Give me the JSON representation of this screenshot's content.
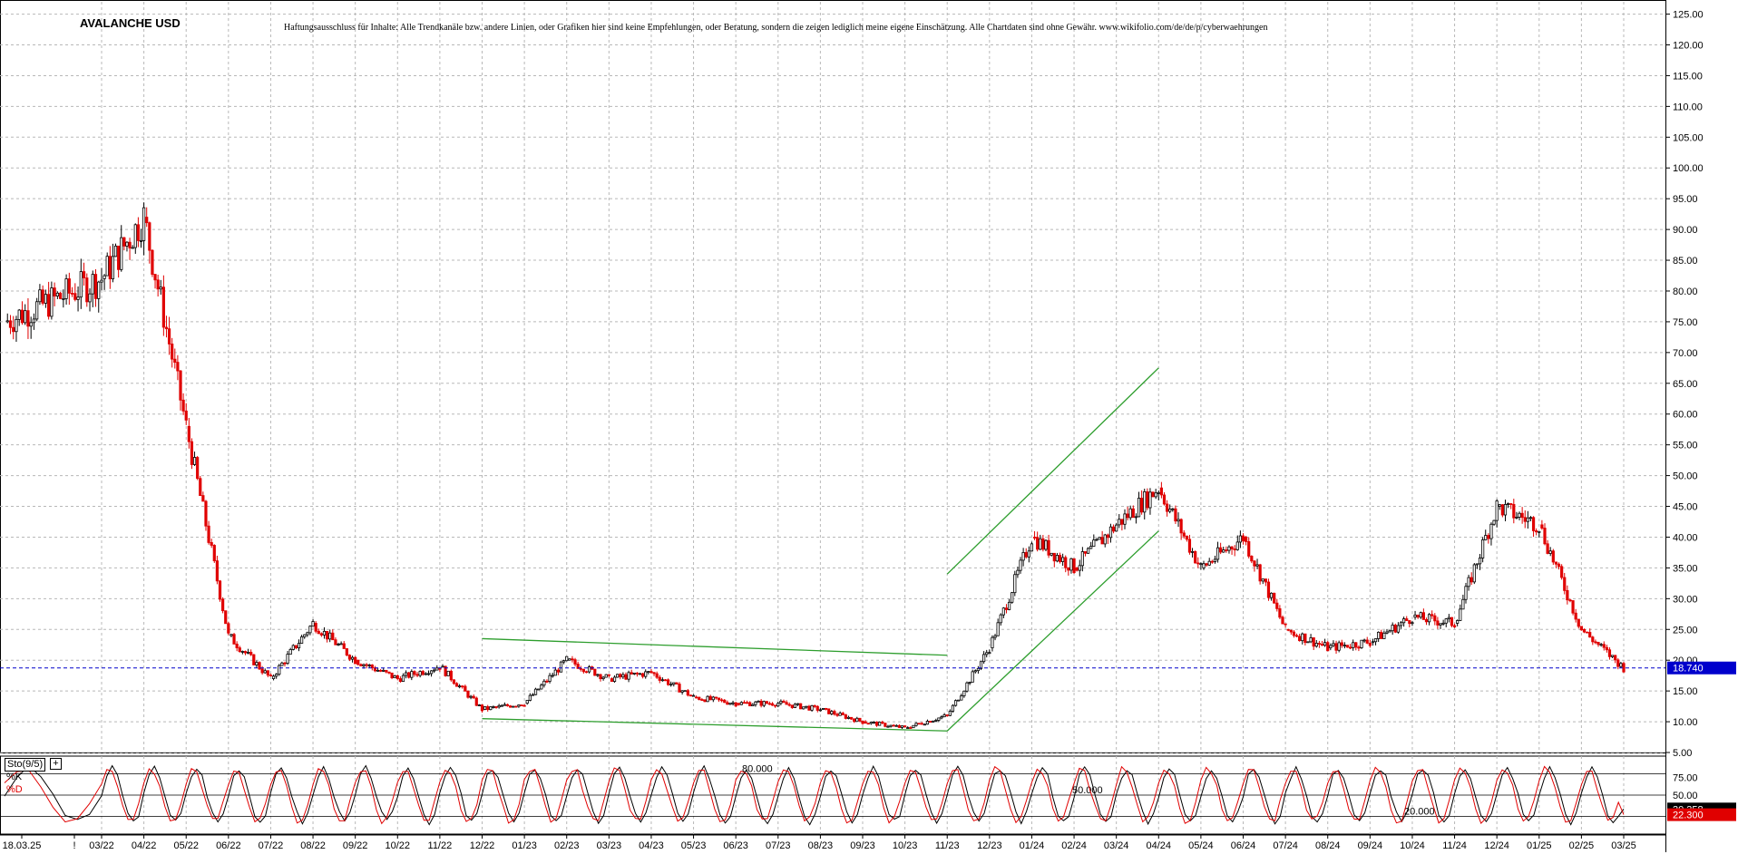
{
  "title": "AVALANCHE USD",
  "disclaimer": "Haftungsausschluss für Inhalte: Alle Trendkanäle bzw. andere Linien, oder Grafiken hier sind keine Empfehlungen, oder Beratung, sondern die zeigen lediglich meine eigene Einschätzung. Alle Chartdaten sind ohne Gewähr.  www.wikifolio.com/de/de/p/cyberwaehrungen",
  "colors": {
    "up": "#000000",
    "down": "#e00000",
    "trendline": "#2e9e2e",
    "price_line": "#0000cc",
    "grid": "#b8b8b8"
  },
  "chart_data": [
    {
      "type": "candlestick",
      "title": "AVALANCHE USD",
      "ylim": [
        5,
        127
      ],
      "y_ticks": [
        "125.00",
        "120.00",
        "115.00",
        "110.00",
        "105.00",
        "100.00",
        "95.00",
        "90.00",
        "85.00",
        "80.00",
        "75.00",
        "70.00",
        "65.00",
        "60.00",
        "55.00",
        "50.00",
        "45.00",
        "40.00",
        "35.00",
        "30.00",
        "25.00",
        "20.00",
        "15.00",
        "10.00",
        "5.00"
      ],
      "x_ticks": [
        "18.03.25",
        "!",
        "03/22",
        "04/22",
        "05/22",
        "06/22",
        "07/22",
        "08/22",
        "09/22",
        "10/22",
        "11/22",
        "12/22",
        "01/23",
        "02/23",
        "03/23",
        "04/23",
        "05/23",
        "06/23",
        "07/23",
        "08/23",
        "09/23",
        "10/23",
        "11/23",
        "12/23",
        "01/24",
        "02/24",
        "03/24",
        "04/24",
        "05/24",
        "06/24",
        "07/24",
        "08/24",
        "09/24",
        "10/24",
        "11/24",
        "12/24",
        "01/25",
        "02/25",
        "03/25"
      ],
      "x": [
        "02/22",
        "03/22",
        "04/22",
        "05/22",
        "06/22",
        "07/22",
        "08/22",
        "09/22",
        "10/22",
        "11/22",
        "12/22",
        "01/23",
        "02/23",
        "03/23",
        "04/23",
        "05/23",
        "06/23",
        "07/23",
        "08/23",
        "09/23",
        "10/23",
        "11/23",
        "12/23",
        "01/24",
        "02/24",
        "03/24",
        "04/24",
        "05/24",
        "06/24",
        "07/24",
        "08/24",
        "09/24",
        "10/24",
        "11/24",
        "12/24",
        "01/25",
        "02/25",
        "03/25"
      ],
      "close": [
        75,
        82,
        92,
        58,
        24,
        17,
        26,
        20,
        17,
        19,
        12,
        13,
        20,
        17,
        18,
        14,
        13,
        13,
        12,
        10,
        9,
        11,
        22,
        40,
        35,
        42,
        48,
        35,
        40,
        25,
        22,
        23,
        27,
        26,
        45,
        42,
        25,
        18.74
      ],
      "last_price": "18.740",
      "trendlines": [
        {
          "name": "channel-2023-upper",
          "from": [
            "12/22",
            23.5
          ],
          "to": [
            "11/23",
            20.8
          ]
        },
        {
          "name": "channel-2023-lower",
          "from": [
            "12/22",
            10.5
          ],
          "to": [
            "11/23",
            8.5
          ]
        },
        {
          "name": "rise-upper",
          "from": [
            "11/23",
            34
          ],
          "to": [
            "04/24",
            67.5
          ]
        },
        {
          "name": "rise-lower",
          "from": [
            "11/23",
            8.5
          ],
          "to": [
            "04/24",
            41
          ]
        }
      ]
    },
    {
      "type": "line",
      "title": "Sto(9/5)",
      "ylim": [
        0,
        100
      ],
      "y_ticks": [
        "75.00",
        "50.00"
      ],
      "levels": [
        {
          "label": "80.000",
          "value": 80
        },
        {
          "label": "50.000",
          "value": 50
        },
        {
          "label": "20.000",
          "value": 20
        }
      ],
      "series": [
        {
          "name": "%K",
          "last": "30.358",
          "values": [
            12,
            85,
            20,
            82,
            10,
            18,
            55,
            80,
            15,
            70,
            12,
            85,
            15,
            75,
            20,
            78,
            12,
            80,
            15,
            70,
            12,
            85,
            90,
            18,
            78,
            10,
            85,
            20,
            70,
            12,
            80,
            15,
            75,
            12,
            82,
            20,
            15,
            30.358
          ]
        },
        {
          "name": "%D",
          "last": "22.300",
          "values": [
            15,
            80,
            25,
            78,
            14,
            20,
            50,
            75,
            18,
            66,
            15,
            80,
            18,
            70,
            22,
            72,
            15,
            76,
            18,
            66,
            15,
            80,
            88,
            22,
            74,
            14,
            80,
            24,
            66,
            15,
            76,
            18,
            70,
            15,
            78,
            22,
            17,
            22.3
          ]
        }
      ]
    }
  ]
}
